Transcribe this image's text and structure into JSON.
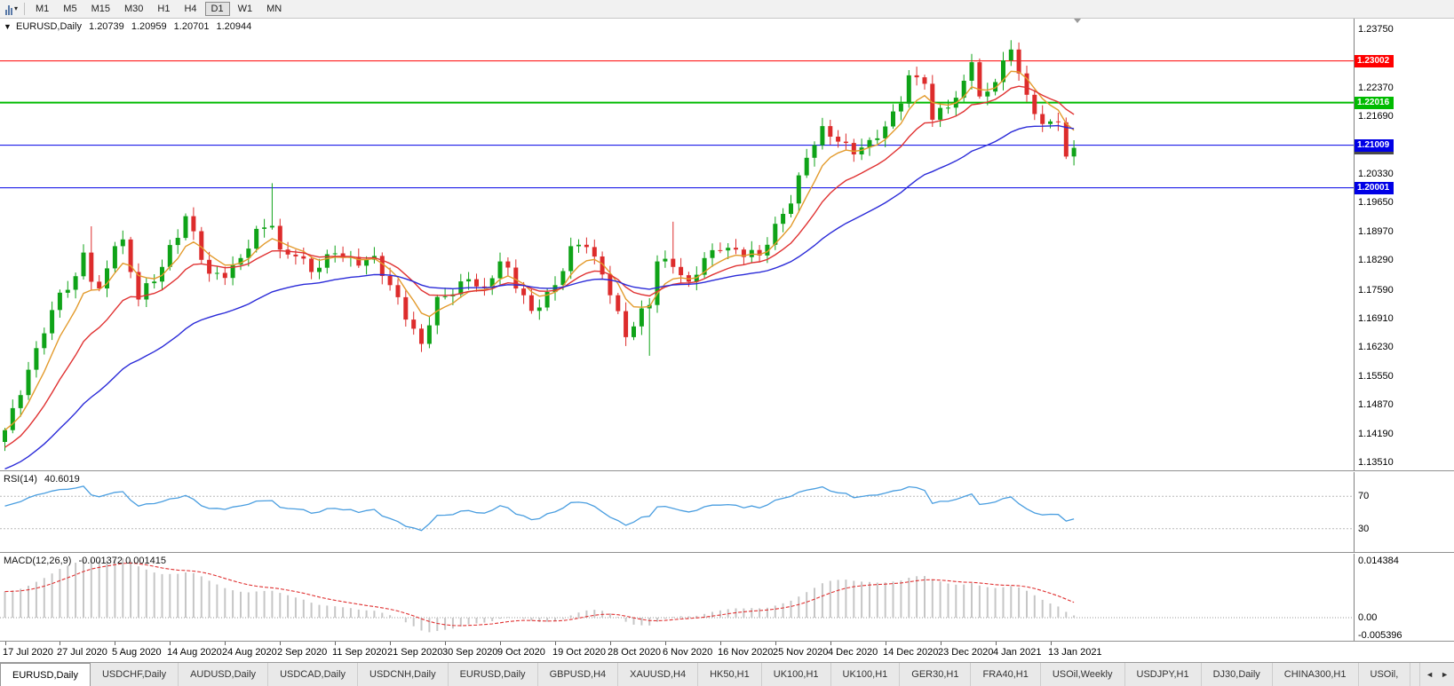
{
  "toolbar": {
    "timeframes": [
      {
        "label": "M1",
        "active": false
      },
      {
        "label": "M5",
        "active": false
      },
      {
        "label": "M15",
        "active": false
      },
      {
        "label": "M30",
        "active": false
      },
      {
        "label": "H1",
        "active": false
      },
      {
        "label": "H4",
        "active": false
      },
      {
        "label": "D1",
        "active": true
      },
      {
        "label": "W1",
        "active": false
      },
      {
        "label": "MN",
        "active": false
      }
    ]
  },
  "chart_header": {
    "marker": "▼",
    "symbol": "EURUSD,Daily",
    "open": "1.20739",
    "high": "1.20959",
    "low": "1.20701",
    "close": "1.20944"
  },
  "rsi_panel": {
    "label": "RSI(14)",
    "value": "40.6019"
  },
  "macd_panel": {
    "label": "MACD(12,26,9)",
    "values": "-0.001372 0.001415"
  },
  "colors": {
    "bull": "#0FA318",
    "bear": "#DD2C2C",
    "ma_fast": "#E39B2D",
    "ma_mid": "#E03232",
    "ma_slow": "#2A2AD8",
    "rsi_line": "#4A9EE0",
    "rsi_level": "#B8B8B8",
    "macd_hist": "#C6C6C6",
    "macd_signal": "#E03232",
    "level_red": "#FF0000",
    "level_green": "#00BB00",
    "level_blue": "#0000E6",
    "last_price_badge": "#4A4A4A"
  },
  "chart_data": {
    "main": {
      "type": "candlestick",
      "symbol": "EURUSD",
      "timeframe": "Daily",
      "ylim": [
        1.1332,
        1.24
      ],
      "price_ticks": [
        "1.23750",
        "1.22370",
        "1.21690",
        "1.20330",
        "1.19650",
        "1.18970",
        "1.18290",
        "1.17590",
        "1.16910",
        "1.16230",
        "1.15550",
        "1.14870",
        "1.14190",
        "1.13510"
      ],
      "levels": [
        {
          "value": "1.23002",
          "price": 1.23002,
          "color_key": "level_red",
          "width": 1
        },
        {
          "value": "1.22016",
          "price": 1.22016,
          "color_key": "level_green",
          "width": 2
        },
        {
          "value": "1.21009",
          "price": 1.21009,
          "color_key": "level_blue",
          "width": 1
        },
        {
          "value": "1.20001",
          "price": 1.20001,
          "color_key": "level_blue",
          "width": 1
        }
      ],
      "last_price": {
        "value": "1.20944",
        "price": 1.20944
      },
      "x_tick_labels": [
        "17 Jul 2020",
        "27 Jul 2020",
        "5 Aug 2020",
        "14 Aug 2020",
        "24 Aug 2020",
        "2 Sep 2020",
        "11 Sep 2020",
        "21 Sep 2020",
        "30 Sep 2020",
        "9 Oct 2020",
        "19 Oct 2020",
        "28 Oct 2020",
        "6 Nov 2020",
        "16 Nov 2020",
        "25 Nov 2020",
        "4 Dec 2020",
        "14 Dec 2020",
        "23 Dec 2020",
        "4 Jan 2021",
        "13 Jan 2021"
      ],
      "candles_per_label": 7,
      "candle_count": 137,
      "close_anchors": [
        [
          0,
          1.1427
        ],
        [
          2,
          1.151
        ],
        [
          3,
          1.157
        ],
        [
          5,
          1.1656
        ],
        [
          7,
          1.1752
        ],
        [
          9,
          1.1791
        ],
        [
          10,
          1.1847
        ],
        [
          11,
          1.1778
        ],
        [
          12,
          1.1762
        ],
        [
          14,
          1.1862
        ],
        [
          15,
          1.1878
        ],
        [
          17,
          1.1736
        ],
        [
          20,
          1.1813
        ],
        [
          23,
          1.1933
        ],
        [
          26,
          1.1797
        ],
        [
          28,
          1.1787
        ],
        [
          30,
          1.1834
        ],
        [
          32,
          1.1903
        ],
        [
          34,
          1.191
        ],
        [
          35,
          1.1854
        ],
        [
          37,
          1.1838
        ],
        [
          39,
          1.1801
        ],
        [
          42,
          1.1845
        ],
        [
          45,
          1.1816
        ],
        [
          47,
          1.1839
        ],
        [
          49,
          1.177
        ],
        [
          52,
          1.1667
        ],
        [
          53,
          1.1631
        ],
        [
          55,
          1.1742
        ],
        [
          57,
          1.1748
        ],
        [
          59,
          1.1784
        ],
        [
          61,
          1.1763
        ],
        [
          63,
          1.1826
        ],
        [
          66,
          1.1746
        ],
        [
          67,
          1.1709
        ],
        [
          70,
          1.177
        ],
        [
          72,
          1.1862
        ],
        [
          74,
          1.186
        ],
        [
          76,
          1.1795
        ],
        [
          77,
          1.1746
        ],
        [
          79,
          1.1647
        ],
        [
          81,
          1.1715
        ],
        [
          82,
          1.1723
        ],
        [
          83,
          1.1826
        ],
        [
          85,
          1.1813
        ],
        [
          87,
          1.1778
        ],
        [
          89,
          1.1834
        ],
        [
          91,
          1.1852
        ],
        [
          93,
          1.1854
        ],
        [
          96,
          1.184
        ],
        [
          98,
          1.1915
        ],
        [
          100,
          1.1963
        ],
        [
          102,
          1.2071
        ],
        [
          104,
          1.2146
        ],
        [
          105,
          1.2121
        ],
        [
          107,
          1.2106
        ],
        [
          108,
          1.2079
        ],
        [
          110,
          1.2113
        ],
        [
          112,
          1.2145
        ],
        [
          114,
          1.2199
        ],
        [
          115,
          1.2266
        ],
        [
          117,
          1.2246
        ],
        [
          118,
          1.2161
        ],
        [
          119,
          1.2189
        ],
        [
          121,
          1.2213
        ],
        [
          123,
          1.2297
        ],
        [
          124,
          1.2216
        ],
        [
          126,
          1.225
        ],
        [
          128,
          1.2327
        ],
        [
          130,
          1.222
        ],
        [
          132,
          1.2151
        ],
        [
          133,
          1.2157
        ],
        [
          134,
          1.2155
        ],
        [
          135,
          1.2074
        ],
        [
          136,
          1.20944
        ]
      ],
      "wick_overrides": {
        "11": {
          "h": 1.1909
        },
        "34": {
          "h": 1.2011
        },
        "53": {
          "l": 1.1612
        },
        "82": {
          "l": 1.1603
        },
        "85": {
          "h": 1.192
        },
        "128": {
          "h": 1.2349
        }
      },
      "moving_averages": [
        {
          "period": 6,
          "color_key": "ma_fast"
        },
        {
          "period": 14,
          "color_key": "ma_mid",
          "seed": 1.138
        },
        {
          "period": 35,
          "color_key": "ma_slow",
          "seed": 1.133
        }
      ]
    },
    "rsi": {
      "type": "line",
      "period": 14,
      "current": 40.6019,
      "levels": [
        70,
        30
      ],
      "range": [
        0,
        100
      ]
    },
    "macd": {
      "type": "histogram+signal",
      "params": "12,26,9",
      "main": -0.001372,
      "signal_value": 0.001415,
      "axis_top": 0.014384,
      "axis_bottom": -0.005396,
      "axis_labels": [
        "0.014384",
        "0.00",
        "-0.005396"
      ]
    }
  },
  "tabs": {
    "scroll_left": "◄",
    "scroll_right": "►",
    "items": [
      {
        "label": "EURUSD,Daily",
        "active": true
      },
      {
        "label": "USDCHF,Daily",
        "active": false
      },
      {
        "label": "AUDUSD,Daily",
        "active": false
      },
      {
        "label": "USDCAD,Daily",
        "active": false
      },
      {
        "label": "USDCNH,Daily",
        "active": false
      },
      {
        "label": "EURUSD,Daily",
        "active": false
      },
      {
        "label": "GBPUSD,H4",
        "active": false
      },
      {
        "label": "XAUUSD,H4",
        "active": false
      },
      {
        "label": "HK50,H1",
        "active": false
      },
      {
        "label": "UK100,H1",
        "active": false
      },
      {
        "label": "UK100,H1",
        "active": false
      },
      {
        "label": "GER30,H1",
        "active": false
      },
      {
        "label": "FRA40,H1",
        "active": false
      },
      {
        "label": "USOil,Weekly",
        "active": false
      },
      {
        "label": "USDJPY,H1",
        "active": false
      },
      {
        "label": "DJ30,Daily",
        "active": false
      },
      {
        "label": "CHINA300,H1",
        "active": false
      },
      {
        "label": "USOil,",
        "active": false
      }
    ]
  }
}
